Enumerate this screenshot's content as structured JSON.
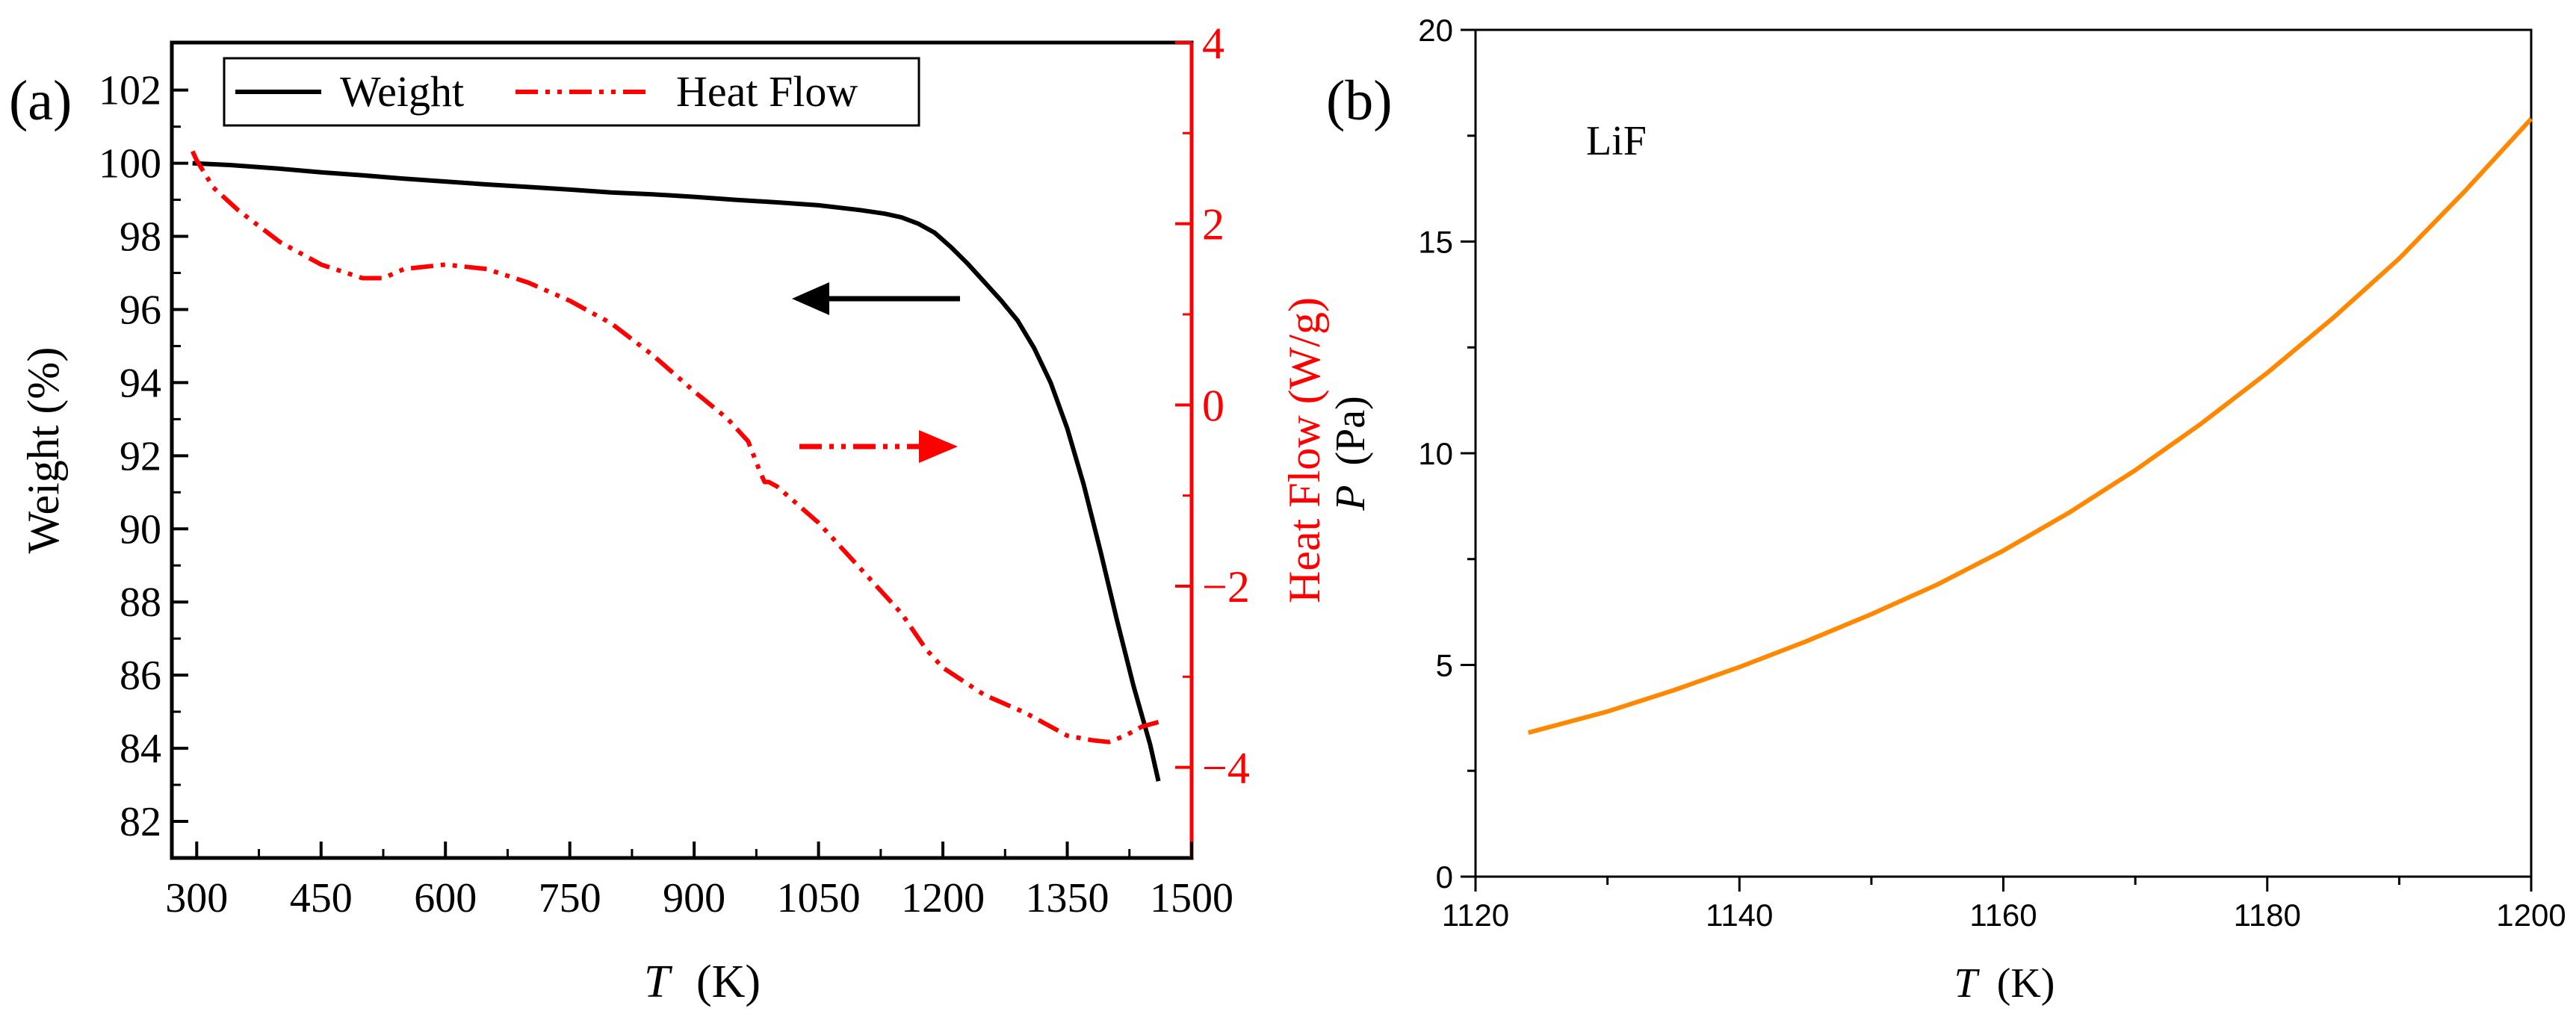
{
  "chart_data": [
    {
      "panel_label": "(a)",
      "type": "line",
      "xlabel": {
        "italic": "T",
        "rest": "(K)"
      },
      "ylabel_left": "Weight (%)",
      "ylabel_right": "Heat Flow (W/g)",
      "x_ticks": [
        300,
        450,
        600,
        750,
        900,
        1050,
        1200,
        1350,
        1500
      ],
      "xlim": [
        270,
        1500
      ],
      "y_left_ticks": [
        82,
        84,
        86,
        88,
        90,
        92,
        94,
        96,
        98,
        100,
        102
      ],
      "ylim_left": [
        81,
        103.3
      ],
      "y_right_ticks": [
        -4,
        -2,
        0,
        2,
        4
      ],
      "ylim_right": [
        -5.0,
        4.0
      ],
      "legend": [
        {
          "name": "Weight",
          "color": "#000000",
          "style": "solid"
        },
        {
          "name": "Heat Flow",
          "color": "#ff0000",
          "style": "dash-dot-dot"
        }
      ],
      "series": [
        {
          "name": "Weight",
          "axis": "left",
          "color": "#000000",
          "x": [
            295,
            340,
            400,
            450,
            500,
            550,
            600,
            650,
            700,
            750,
            800,
            850,
            900,
            950,
            1000,
            1050,
            1100,
            1130,
            1150,
            1170,
            1190,
            1210,
            1230,
            1250,
            1270,
            1290,
            1310,
            1330,
            1350,
            1370,
            1390,
            1410,
            1430,
            1450,
            1460
          ],
          "y": [
            100.0,
            99.95,
            99.85,
            99.75,
            99.67,
            99.58,
            99.5,
            99.42,
            99.35,
            99.28,
            99.2,
            99.15,
            99.08,
            99.0,
            98.93,
            98.85,
            98.72,
            98.62,
            98.52,
            98.35,
            98.1,
            97.7,
            97.25,
            96.75,
            96.25,
            95.7,
            94.95,
            94.0,
            92.75,
            91.2,
            89.4,
            87.5,
            85.7,
            84.1,
            83.1
          ]
        },
        {
          "name": "Heat Flow",
          "axis": "right",
          "color": "#ff0000",
          "x": [
            295,
            300,
            320,
            350,
            400,
            450,
            500,
            525,
            550,
            600,
            650,
            700,
            750,
            800,
            850,
            900,
            940,
            965,
            980,
            985,
            990,
            1000,
            1050,
            1100,
            1150,
            1180,
            1200,
            1250,
            1300,
            1350,
            1380,
            1400,
            1420,
            1440,
            1460
          ],
          "y": [
            2.8,
            2.7,
            2.4,
            2.15,
            1.8,
            1.55,
            1.4,
            1.4,
            1.5,
            1.55,
            1.5,
            1.35,
            1.15,
            0.9,
            0.55,
            0.15,
            -0.15,
            -0.4,
            -0.75,
            -0.85,
            -0.85,
            -0.9,
            -1.3,
            -1.8,
            -2.3,
            -2.7,
            -2.9,
            -3.2,
            -3.4,
            -3.65,
            -3.7,
            -3.72,
            -3.65,
            -3.55,
            -3.5
          ]
        }
      ],
      "annotations": [
        {
          "type": "arrow",
          "direction": "left",
          "color": "#000000",
          "meaning": "Weight uses left axis"
        },
        {
          "type": "arrow",
          "direction": "right",
          "color": "#ff0000",
          "meaning": "Heat Flow uses right axis"
        }
      ]
    },
    {
      "panel_label": "(b)",
      "type": "line",
      "annotation_text": "LiF",
      "xlabel": {
        "italic": "T",
        "rest": "(K)"
      },
      "ylabel": {
        "italic": "P",
        "rest": "(Pa)"
      },
      "x_ticks": [
        1120,
        1140,
        1160,
        1180,
        1200
      ],
      "xlim": [
        1120,
        1200
      ],
      "y_ticks": [
        0,
        5,
        10,
        15,
        20
      ],
      "ylim": [
        0,
        20
      ],
      "series": [
        {
          "name": "LiF",
          "color": "#ff8800",
          "x": [
            1124,
            1130,
            1135,
            1140,
            1145,
            1150,
            1155,
            1160,
            1165,
            1170,
            1175,
            1180,
            1185,
            1190,
            1195,
            1200
          ],
          "y": [
            3.4,
            3.9,
            4.4,
            4.95,
            5.55,
            6.2,
            6.9,
            7.7,
            8.6,
            9.6,
            10.7,
            11.9,
            13.2,
            14.6,
            16.2,
            17.9
          ]
        }
      ]
    }
  ]
}
